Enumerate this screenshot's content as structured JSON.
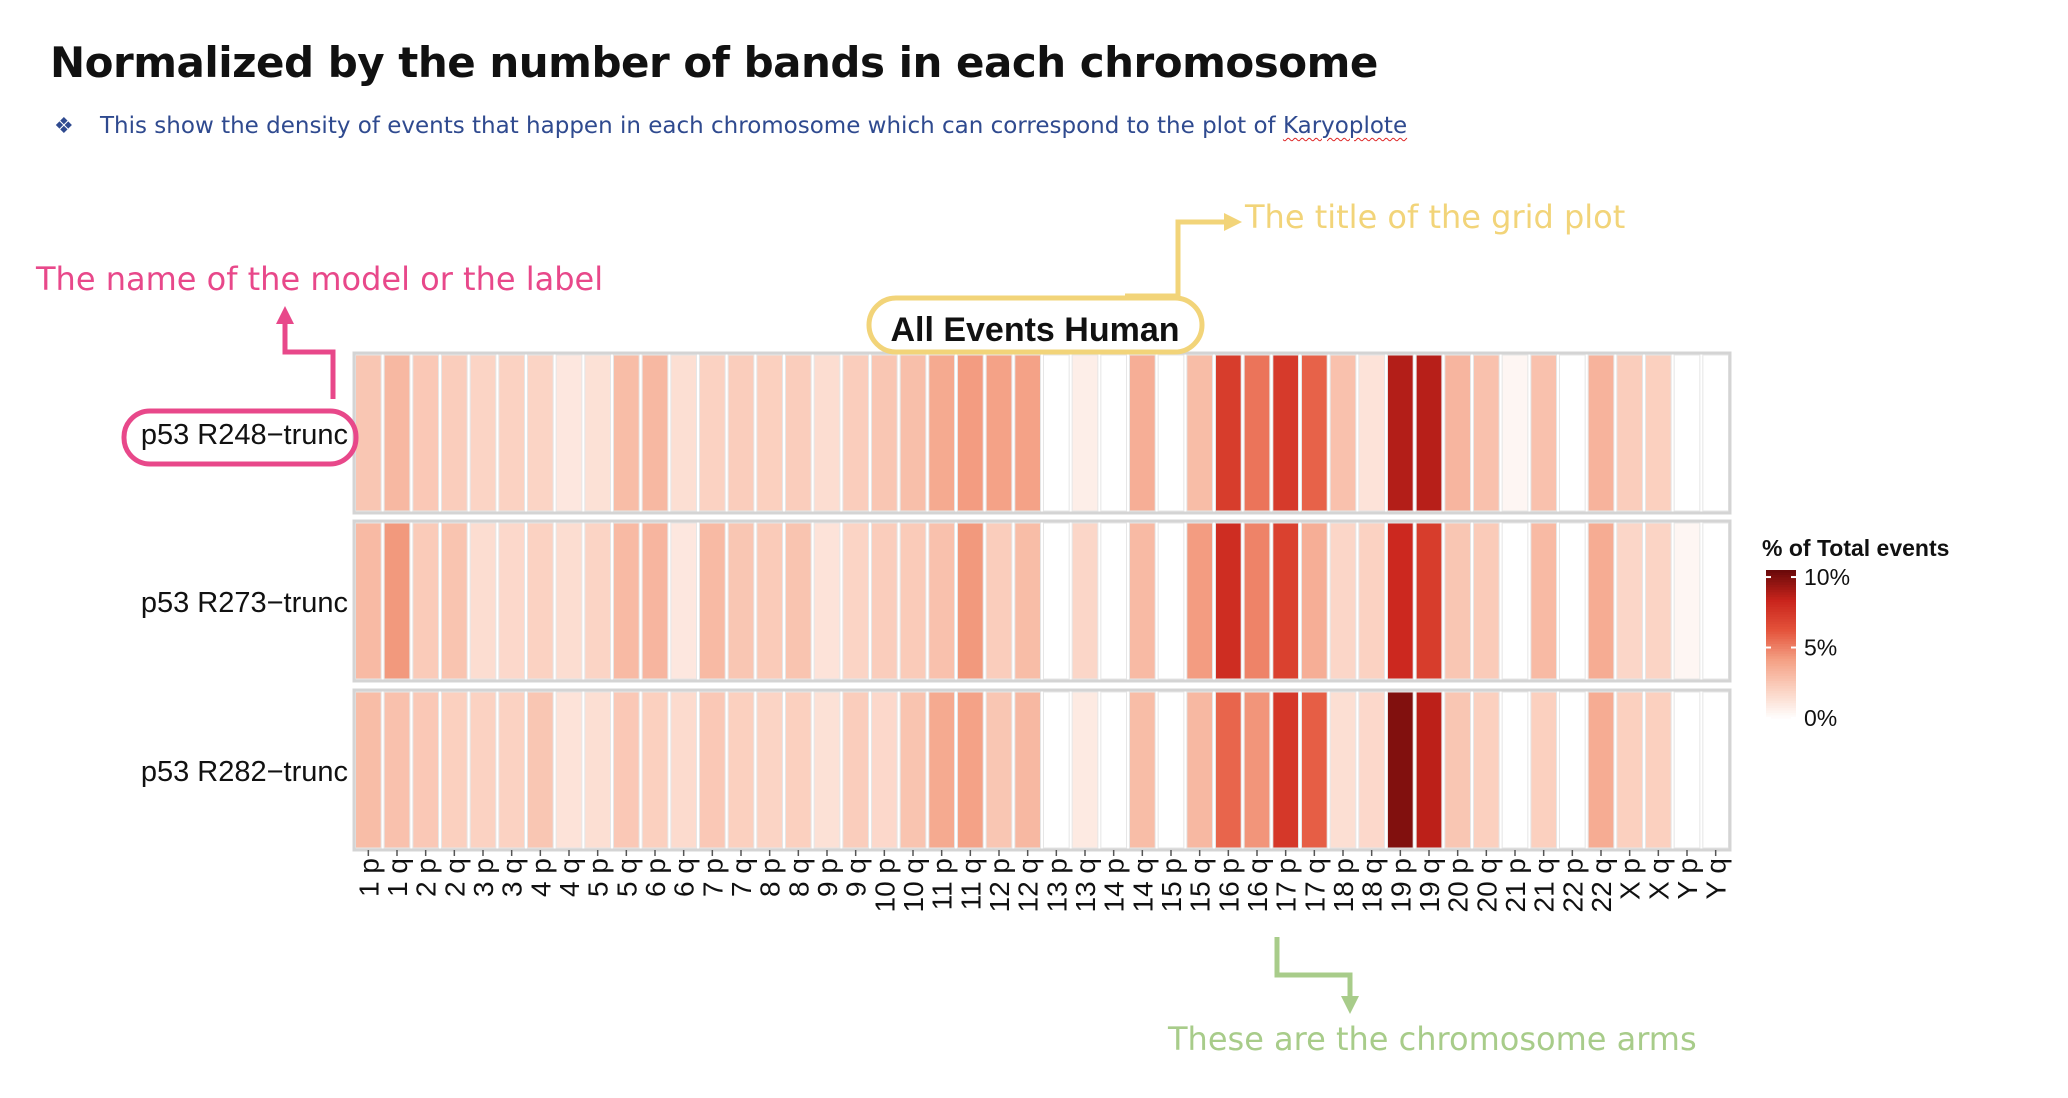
{
  "slide": {
    "title": "Normalized by the number of bands in each chromosome",
    "bullet_symbol": "❖",
    "bullet_text_before": "This show the density of events that happen in each chromosome which can correspond to the plot of ",
    "bullet_text_link": "Karyoplote"
  },
  "annotations": {
    "grid_title": "The title of the grid plot",
    "model_label": "The name of the model or the label",
    "chromosome_arms": "These are the chromosome arms",
    "colors": {
      "grid_title": "#f2d479",
      "model_label": "#e8488a",
      "chromosome_arms": "#a8cc8a"
    }
  },
  "chart_data": {
    "type": "heatmap",
    "title": "All Events Human",
    "categories": [
      "1 p",
      "1 q",
      "2 p",
      "2 q",
      "3 p",
      "3 q",
      "4 p",
      "4 q",
      "5 p",
      "5 q",
      "6 p",
      "6 q",
      "7 p",
      "7 q",
      "8 p",
      "8 q",
      "9 p",
      "9 q",
      "10 p",
      "10 q",
      "11 p",
      "11 q",
      "12 p",
      "12 q",
      "13 p",
      "13 q",
      "14 p",
      "14 q",
      "15 p",
      "15 q",
      "16 p",
      "16 q",
      "17 p",
      "17 q",
      "18 p",
      "18 q",
      "19 p",
      "19 q",
      "20 p",
      "20 q",
      "21 p",
      "21 q",
      "22 p",
      "22 q",
      "X p",
      "X q",
      "Y p",
      "Y q"
    ],
    "series": [
      {
        "name": "p53 R248−trunc",
        "values": [
          2.6,
          3.2,
          2.5,
          2.3,
          2.0,
          2.1,
          2.0,
          1.1,
          1.4,
          3.0,
          3.2,
          1.5,
          2.1,
          2.3,
          2.2,
          2.3,
          1.6,
          2.3,
          2.6,
          2.9,
          3.8,
          4.3,
          4.1,
          4.1,
          0.0,
          0.8,
          0.0,
          3.6,
          0.0,
          3.0,
          7.3,
          5.4,
          7.4,
          5.9,
          2.8,
          1.3,
          8.9,
          8.8,
          3.3,
          2.8,
          0.4,
          2.8,
          0.0,
          3.4,
          2.3,
          2.2,
          0.0,
          0.0
        ]
      },
      {
        "name": "p53 R273−trunc",
        "values": [
          3.1,
          4.4,
          2.4,
          2.7,
          1.6,
          1.8,
          2.1,
          1.6,
          2.0,
          3.1,
          3.3,
          1.1,
          3.1,
          2.6,
          2.4,
          2.7,
          1.3,
          2.0,
          2.3,
          2.4,
          2.8,
          4.4,
          2.3,
          3.0,
          0.0,
          1.9,
          0.0,
          3.1,
          0.0,
          4.3,
          8.0,
          5.0,
          7.1,
          3.6,
          1.9,
          2.1,
          8.2,
          7.3,
          2.6,
          2.4,
          0.0,
          3.1,
          0.0,
          3.7,
          1.9,
          2.0,
          0.4,
          0.0
        ]
      },
      {
        "name": "p53 R282−trunc",
        "values": [
          3.0,
          2.8,
          2.5,
          2.2,
          2.1,
          2.1,
          2.6,
          1.3,
          1.5,
          2.5,
          2.2,
          1.7,
          2.5,
          2.2,
          2.0,
          2.2,
          1.4,
          2.3,
          1.8,
          2.7,
          3.8,
          4.1,
          2.6,
          3.2,
          0.0,
          1.0,
          0.0,
          3.0,
          0.0,
          3.2,
          5.8,
          4.5,
          7.5,
          6.0,
          1.5,
          1.8,
          10.0,
          8.7,
          2.6,
          2.2,
          0.0,
          2.2,
          0.0,
          3.7,
          2.2,
          2.2,
          0.0,
          0.0
        ]
      }
    ],
    "legend": {
      "title": "% of Total events",
      "ticks": [
        "10%",
        "5%",
        "0%"
      ],
      "tick_values": [
        10,
        5,
        0
      ],
      "placement": "right"
    },
    "colorscale": [
      "#ffffff",
      "#fbd2c2",
      "#f4a084",
      "#e4533b",
      "#c9241c",
      "#6b0a0a"
    ],
    "range": [
      0,
      10.5
    ]
  }
}
